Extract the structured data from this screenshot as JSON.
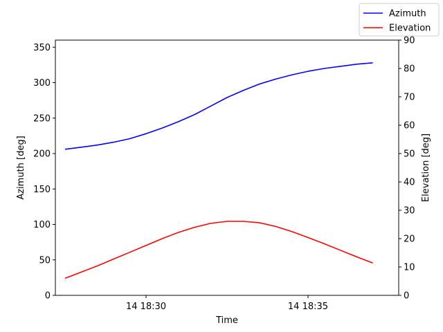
{
  "chart_data": {
    "type": "line",
    "xlabel": "Time",
    "ylabel_left": "Azimuth [deg]",
    "ylabel_right": "Elevation [deg]",
    "xlim": [
      "14 18:27:12",
      "14 18:37:48"
    ],
    "ylim_left": [
      0,
      360
    ],
    "ylim_right": [
      0,
      90
    ],
    "x_ticks": [
      {
        "time": "14 18:30:00",
        "label": "14 18:30"
      },
      {
        "time": "14 18:35:00",
        "label": "14 18:35"
      }
    ],
    "y_ticks_left": [
      0,
      50,
      100,
      150,
      200,
      250,
      300,
      350
    ],
    "y_ticks_right": [
      0,
      10,
      20,
      30,
      40,
      50,
      60,
      70,
      80,
      90
    ],
    "legend_position": "top-right",
    "grid": false,
    "x": [
      "14 18:27:30",
      "14 18:28:00",
      "14 18:28:30",
      "14 18:29:00",
      "14 18:29:30",
      "14 18:30:00",
      "14 18:30:30",
      "14 18:31:00",
      "14 18:31:30",
      "14 18:32:00",
      "14 18:32:30",
      "14 18:33:00",
      "14 18:33:30",
      "14 18:34:00",
      "14 18:34:30",
      "14 18:35:00",
      "14 18:35:30",
      "14 18:36:00",
      "14 18:36:30",
      "14 18:37:00"
    ],
    "series": [
      {
        "name": "Azimuth",
        "axis": "left",
        "color": "#0000ff",
        "values": [
          206,
          209,
          212,
          216,
          221,
          228,
          236,
          245,
          255,
          267,
          279,
          289,
          298,
          305,
          311,
          316,
          320,
          323,
          326,
          328
        ]
      },
      {
        "name": "Elevation",
        "axis": "right",
        "color": "#ff0000",
        "values": [
          6,
          8.2,
          10.4,
          12.8,
          15.2,
          17.6,
          20,
          22.2,
          24,
          25.4,
          26.1,
          26.1,
          25.6,
          24.3,
          22.5,
          20.4,
          18.2,
          15.9,
          13.6,
          11.4
        ]
      }
    ]
  }
}
